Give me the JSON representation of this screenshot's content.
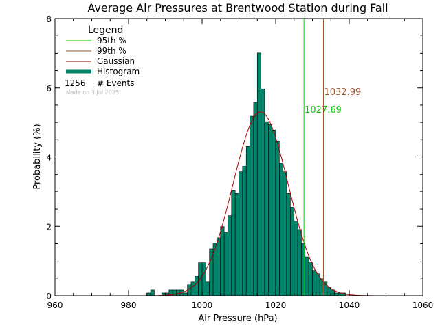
{
  "chart_data": {
    "type": "bar",
    "title": "Average Air Pressures at Brentwood Station during Fall",
    "xlabel": "Air Pressure (hPa)",
    "ylabel": "Probability (%)",
    "xlim": [
      960,
      1060
    ],
    "ylim": [
      0,
      8
    ],
    "x_ticks": [
      "960",
      "980",
      "1000",
      "1020",
      "1040",
      "1060"
    ],
    "y_ticks": [
      "0",
      "2",
      "4",
      "6",
      "8"
    ],
    "bin_width": 1,
    "histogram": [
      {
        "x": 985.5,
        "y": 0.08
      },
      {
        "x": 986.5,
        "y": 0.16
      },
      {
        "x": 989.5,
        "y": 0.08
      },
      {
        "x": 990.5,
        "y": 0.08
      },
      {
        "x": 991.5,
        "y": 0.16
      },
      {
        "x": 992.5,
        "y": 0.16
      },
      {
        "x": 993.5,
        "y": 0.16
      },
      {
        "x": 994.5,
        "y": 0.16
      },
      {
        "x": 995.5,
        "y": 0.08
      },
      {
        "x": 996.5,
        "y": 0.32
      },
      {
        "x": 997.5,
        "y": 0.4
      },
      {
        "x": 998.5,
        "y": 0.56
      },
      {
        "x": 999.5,
        "y": 0.96
      },
      {
        "x": 1000.5,
        "y": 0.96
      },
      {
        "x": 1001.5,
        "y": 0.4
      },
      {
        "x": 1002.5,
        "y": 1.35
      },
      {
        "x": 1003.5,
        "y": 1.51
      },
      {
        "x": 1004.5,
        "y": 1.67
      },
      {
        "x": 1005.5,
        "y": 1.99
      },
      {
        "x": 1006.5,
        "y": 1.83
      },
      {
        "x": 1007.5,
        "y": 2.31
      },
      {
        "x": 1008.5,
        "y": 3.03
      },
      {
        "x": 1009.5,
        "y": 2.95
      },
      {
        "x": 1010.5,
        "y": 3.58
      },
      {
        "x": 1011.5,
        "y": 3.74
      },
      {
        "x": 1012.5,
        "y": 4.3
      },
      {
        "x": 1013.5,
        "y": 5.18
      },
      {
        "x": 1014.5,
        "y": 5.58
      },
      {
        "x": 1015.5,
        "y": 7.01
      },
      {
        "x": 1016.5,
        "y": 5.97
      },
      {
        "x": 1017.5,
        "y": 5.02
      },
      {
        "x": 1018.5,
        "y": 4.94
      },
      {
        "x": 1019.5,
        "y": 4.78
      },
      {
        "x": 1020.5,
        "y": 4.46
      },
      {
        "x": 1021.5,
        "y": 3.82
      },
      {
        "x": 1022.5,
        "y": 3.58
      },
      {
        "x": 1023.5,
        "y": 2.95
      },
      {
        "x": 1024.5,
        "y": 2.55
      },
      {
        "x": 1025.5,
        "y": 2.15
      },
      {
        "x": 1026.5,
        "y": 1.91
      },
      {
        "x": 1027.5,
        "y": 1.51
      },
      {
        "x": 1028.5,
        "y": 1.11
      },
      {
        "x": 1029.5,
        "y": 0.96
      },
      {
        "x": 1030.5,
        "y": 0.72
      },
      {
        "x": 1031.5,
        "y": 0.64
      },
      {
        "x": 1032.5,
        "y": 0.48
      },
      {
        "x": 1033.5,
        "y": 0.4
      },
      {
        "x": 1034.5,
        "y": 0.24
      },
      {
        "x": 1035.5,
        "y": 0.16
      },
      {
        "x": 1036.5,
        "y": 0.08
      },
      {
        "x": 1037.5,
        "y": 0.08
      },
      {
        "x": 1038.5,
        "y": 0.08
      }
    ],
    "gaussian": {
      "name": "Gaussian",
      "mean": 1015.9,
      "sigma": 7.5,
      "peak": 5.3,
      "color": "#aa0000"
    },
    "percentiles": [
      {
        "name": "95th %",
        "value": 1027.69,
        "label": "1027.69",
        "color": "#00cc00"
      },
      {
        "name": "99th %",
        "value": 1032.99,
        "label": "1032.99",
        "color": "#a0522d"
      }
    ],
    "bar_color": "#00856a",
    "grid": false,
    "legend": {
      "title": "Legend",
      "position": "top-left",
      "entries": [
        {
          "label": "95th %",
          "color": "#00cc00"
        },
        {
          "label": "99th %",
          "color": "#a0522d"
        },
        {
          "label": "Gaussian",
          "color": "#aa0000"
        },
        {
          "label": "Histogram",
          "color": "#00856a"
        }
      ],
      "events_count": "1256",
      "events_label": "# Events",
      "made_on": "Made on 3 Jul 2025"
    }
  }
}
